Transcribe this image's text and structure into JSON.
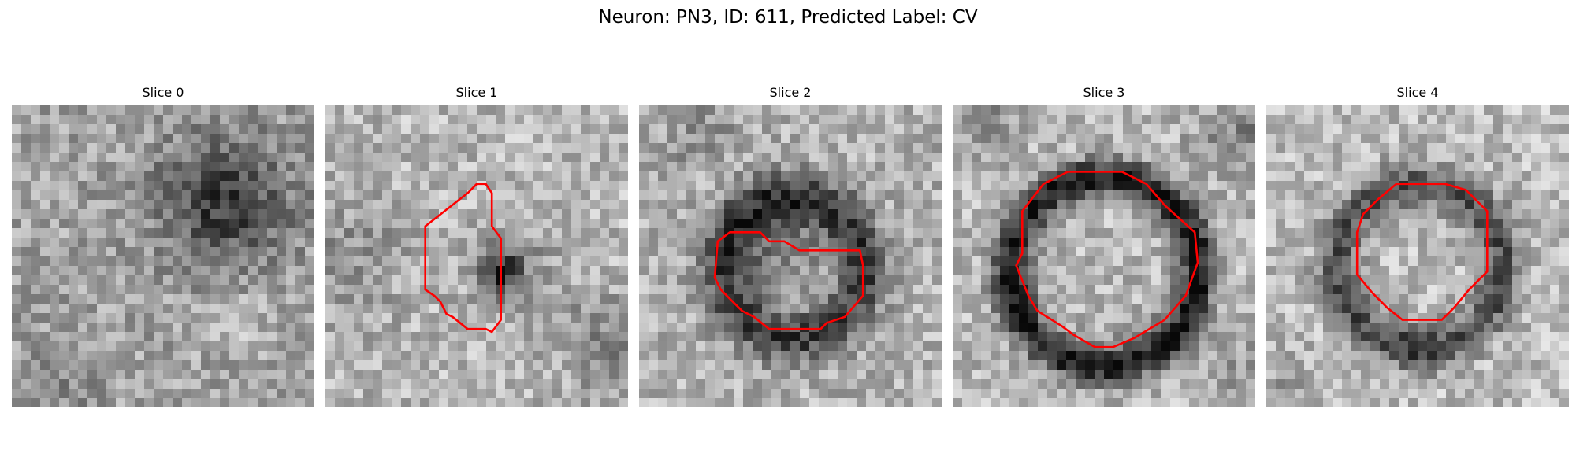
{
  "figure": {
    "title": "Neuron: PN3, ID: 611, Predicted Label: CV"
  },
  "colors": {
    "contour": "#ff0000",
    "background": "#ffffff"
  },
  "slices": [
    {
      "label": "Slice 0",
      "has_contour": false
    },
    {
      "label": "Slice 1",
      "has_contour": true
    },
    {
      "label": "Slice 2",
      "has_contour": true
    },
    {
      "label": "Slice 3",
      "has_contour": true
    },
    {
      "label": "Slice 4",
      "has_contour": true
    }
  ]
}
